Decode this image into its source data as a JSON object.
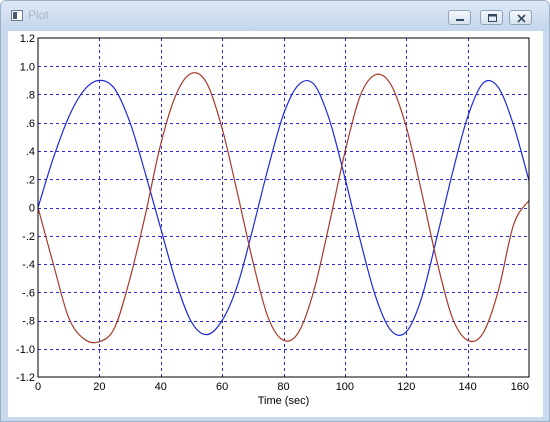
{
  "window": {
    "title": "Plot",
    "icons": {
      "app": "plot-app-icon",
      "minimize": "minimize-icon",
      "maximize": "maximize-icon",
      "close": "close-icon"
    }
  },
  "colors": {
    "grid": "#2b2bd6",
    "series_blue": "#1f2ad4",
    "series_red": "#a53a2a",
    "frame": "#000000",
    "titlebar": "#c9daee"
  },
  "chart_data": {
    "type": "line",
    "xlabel": "Time (sec)",
    "ylabel": "",
    "xlim": [
      0,
      160
    ],
    "ylim": [
      -1.2,
      1.2
    ],
    "xticks": [
      0,
      20,
      40,
      60,
      80,
      100,
      120,
      140,
      160
    ],
    "xtick_labels": [
      "0",
      "20",
      "40",
      "60",
      "80",
      "100",
      "120",
      "140",
      "160"
    ],
    "yticks": [
      1.2,
      1.0,
      0.8,
      0.6,
      0.4,
      0.2,
      0,
      -0.2,
      -0.4,
      -0.6,
      -0.8,
      -1.0,
      -1.2
    ],
    "ytick_labels": [
      "1.2",
      "1.0",
      ".8",
      ".6",
      ".4",
      ".2",
      "0",
      "-.2",
      "-.4",
      "-.6",
      "-.8",
      "-1.0",
      "-1.2"
    ],
    "grid": true,
    "legend": "none",
    "series": [
      {
        "color": "#1f2ad4",
        "x": [
          0,
          5,
          10,
          15,
          20,
          25,
          30,
          35,
          40,
          45,
          50,
          55,
          60,
          65,
          70,
          75,
          80,
          85,
          90,
          95,
          100,
          105,
          110,
          115,
          120,
          125,
          130,
          135,
          140,
          145,
          150,
          155,
          160
        ],
        "y": [
          0,
          0.35,
          0.64,
          0.83,
          0.9,
          0.84,
          0.6,
          0.24,
          -0.15,
          -0.53,
          -0.81,
          -0.9,
          -0.8,
          -0.55,
          -0.15,
          0.28,
          0.66,
          0.87,
          0.87,
          0.62,
          0.21,
          -0.23,
          -0.63,
          -0.87,
          -0.88,
          -0.64,
          -0.21,
          0.24,
          0.64,
          0.88,
          0.85,
          0.58,
          0.19
        ]
      },
      {
        "color": "#a53a2a",
        "x": [
          0,
          5,
          10,
          15,
          20,
          25,
          30,
          35,
          40,
          45,
          50,
          55,
          60,
          65,
          70,
          75,
          80,
          85,
          90,
          95,
          100,
          105,
          110,
          115,
          120,
          125,
          130,
          135,
          140,
          145,
          150,
          155,
          160
        ],
        "y": [
          0,
          -0.4,
          -0.78,
          -0.93,
          -0.95,
          -0.85,
          -0.5,
          -0.05,
          0.45,
          0.8,
          0.95,
          0.88,
          0.56,
          0.1,
          -0.38,
          -0.78,
          -0.94,
          -0.88,
          -0.58,
          -0.11,
          0.39,
          0.79,
          0.94,
          0.87,
          0.57,
          0.11,
          -0.38,
          -0.78,
          -0.94,
          -0.89,
          -0.59,
          -0.12,
          0.05
        ]
      }
    ]
  }
}
